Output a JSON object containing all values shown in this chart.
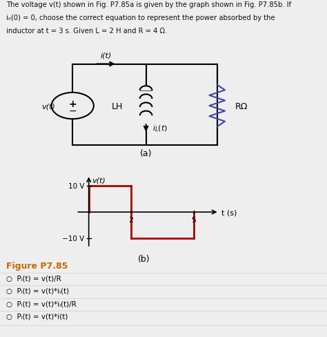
{
  "title_line1": "The voltage v(t) shown in Fig. P7.85a is given by the graph shown in Fig. P7.85b. If",
  "title_line2": "i₀(0) = 0, choose the correct equation to represent the power absorbed by the",
  "title_line3": "inductor at t = 3 s. Given L = 2 H and R = 4 Ω.",
  "figure_label_a": "(a)",
  "figure_label_b": "(b)",
  "figure_caption": "Figure P7.85",
  "graph_xlabel": "t (s)",
  "graph_ylabel": "v(t)",
  "options": [
    "Pₗ(t) = v(t)/R",
    "Pₗ(t) = v(t)*iₗ(t)",
    "Pₗ(t) = v(t)*iₗ(t)/R",
    "Pₗ(t) = v(t)*i(t)"
  ],
  "graph_color": "#aa0000",
  "bg_color": "#eeeeee",
  "caption_color": "#cc6600",
  "text_color": "#111111",
  "black": "#000000"
}
